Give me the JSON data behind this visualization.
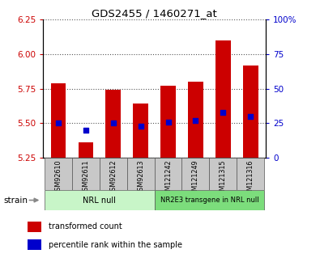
{
  "title": "GDS2455 / 1460271_at",
  "samples": [
    "GSM92610",
    "GSM92611",
    "GSM92612",
    "GSM92613",
    "GSM121242",
    "GSM121249",
    "GSM121315",
    "GSM121316"
  ],
  "transformed_count": [
    5.79,
    5.36,
    5.74,
    5.64,
    5.77,
    5.8,
    6.1,
    5.92
  ],
  "percentile_rank": [
    25,
    20,
    25,
    23,
    26,
    27,
    33,
    30
  ],
  "ylim_left": [
    5.25,
    6.25
  ],
  "ylim_right": [
    0,
    100
  ],
  "yticks_left": [
    5.25,
    5.5,
    5.75,
    6.0,
    6.25
  ],
  "yticks_right": [
    0,
    25,
    50,
    75,
    100
  ],
  "ytick_labels_right": [
    "0",
    "25",
    "50",
    "75",
    "100%"
  ],
  "groups": [
    {
      "label": "NRL null",
      "start": 0,
      "end": 4,
      "color": "#c8f5c8"
    },
    {
      "label": "NR2E3 transgene in NRL null",
      "start": 4,
      "end": 8,
      "color": "#7cdd7c"
    }
  ],
  "bar_color": "#cc0000",
  "dot_color": "#0000cc",
  "bar_bottom": 5.25,
  "left_tick_color": "#cc0000",
  "right_tick_color": "#0000cc",
  "title_color": "#000000",
  "legend_items": [
    "transformed count",
    "percentile rank within the sample"
  ],
  "strain_label": "strain",
  "tick_label_bg": "#c8c8c8",
  "grid_color": "#555555"
}
